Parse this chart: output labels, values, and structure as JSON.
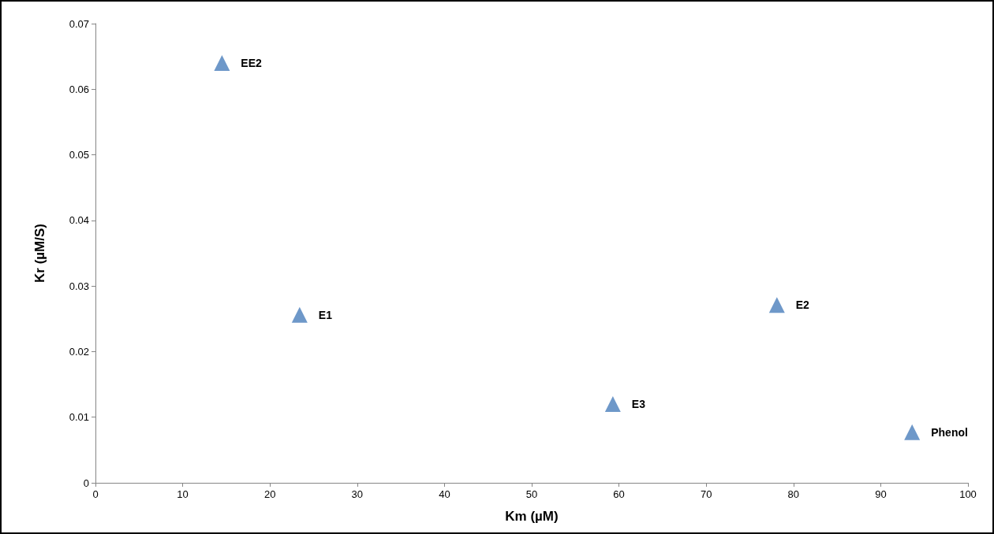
{
  "chart_data": {
    "type": "scatter",
    "xlabel": "Km (µM)",
    "ylabel": "Kr (µM/S)",
    "x": [
      14.5,
      23.4,
      78.1,
      59.3,
      93.6
    ],
    "values": [
      0.064,
      0.0256,
      0.0271,
      0.012,
      0.0077
    ],
    "color": "#4a7ebb",
    "marker": "triangle",
    "grid": false,
    "xlim": [
      0,
      100
    ],
    "xticks": [
      0,
      10,
      20,
      30,
      40,
      50,
      60,
      70,
      80,
      90,
      100
    ],
    "ylim": [
      0,
      0.07
    ],
    "yticks": [
      0,
      0.01,
      0.02,
      0.03,
      0.04,
      0.05,
      0.06,
      0.07
    ],
    "annotations": [
      {
        "text": "EE2",
        "x": 14.5,
        "y": 0.064
      },
      {
        "text": "E1",
        "x": 23.4,
        "y": 0.0256
      },
      {
        "text": "E2",
        "x": 78.1,
        "y": 0.0271
      },
      {
        "text": "E3",
        "x": 59.3,
        "y": 0.012
      },
      {
        "text": "Phenol",
        "x": 93.6,
        "y": 0.0077
      }
    ]
  }
}
